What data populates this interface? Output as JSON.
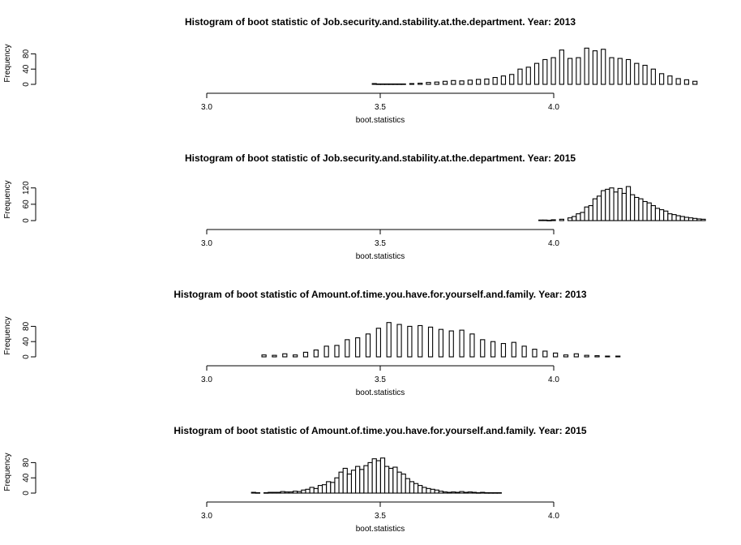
{
  "figure": {
    "background": "#ffffff",
    "bar_fill": "#ffffff",
    "bar_stroke": "#000000"
  },
  "chart_data": [
    {
      "type": "bar",
      "title": "Histogram of boot statistic of  Job.security.and.stability.at.the.department. Year: 2013",
      "xlabel": "boot.statistics",
      "ylabel": "Frequency",
      "xlim": [
        3.0,
        4.45
      ],
      "ylim": [
        0,
        100
      ],
      "xticks": [
        "3.0",
        "3.5",
        "4.0"
      ],
      "xtick_values": [
        3.0,
        3.5,
        4.0
      ],
      "yticks": [
        "0",
        "40",
        "80"
      ],
      "ytick_values": [
        0,
        40,
        80
      ],
      "bin_width": 0.012,
      "x": [
        3.483,
        3.495,
        3.507,
        3.519,
        3.531,
        3.543,
        3.555,
        3.567,
        3.591,
        3.615,
        3.639,
        3.663,
        3.687,
        3.711,
        3.735,
        3.759,
        3.783,
        3.807,
        3.831,
        3.855,
        3.879,
        3.903,
        3.927,
        3.951,
        3.975,
        3.999,
        4.023,
        4.047,
        4.071,
        4.095,
        4.119,
        4.143,
        4.167,
        4.191,
        4.215,
        4.239,
        4.263,
        4.287,
        4.311,
        4.335,
        4.359,
        4.383,
        4.407
      ],
      "values": [
        2,
        1,
        1,
        1,
        1,
        1,
        1,
        1,
        2,
        3,
        5,
        6,
        8,
        10,
        9,
        11,
        13,
        14,
        18,
        22,
        26,
        40,
        45,
        55,
        65,
        70,
        90,
        68,
        70,
        95,
        88,
        92,
        70,
        68,
        65,
        55,
        50,
        40,
        28,
        22,
        15,
        12,
        8
      ]
    },
    {
      "type": "bar",
      "title": "Histogram of boot statistic of  Job.security.and.stability.at.the.department. Year: 2015",
      "xlabel": "boot.statistics",
      "ylabel": "Frequency",
      "xlim": [
        3.0,
        4.45
      ],
      "ylim": [
        0,
        140
      ],
      "xticks": [
        "3.0",
        "3.5",
        "4.0"
      ],
      "xtick_values": [
        3.0,
        3.5,
        4.0
      ],
      "yticks": [
        "0",
        "60",
        "120"
      ],
      "ytick_values": [
        0,
        60,
        120
      ],
      "bin_width": 0.012,
      "x": [
        3.963,
        3.975,
        3.987,
        3.999,
        4.023,
        4.047,
        4.059,
        4.071,
        4.083,
        4.095,
        4.107,
        4.119,
        4.131,
        4.143,
        4.155,
        4.167,
        4.179,
        4.191,
        4.203,
        4.215,
        4.227,
        4.239,
        4.251,
        4.263,
        4.275,
        4.287,
        4.299,
        4.311,
        4.323,
        4.335,
        4.347,
        4.359,
        4.371,
        4.383,
        4.395,
        4.407,
        4.419,
        4.431
      ],
      "values": [
        2,
        2,
        1,
        3,
        5,
        10,
        15,
        25,
        30,
        50,
        55,
        80,
        90,
        110,
        115,
        120,
        105,
        118,
        100,
        125,
        95,
        85,
        80,
        70,
        65,
        55,
        45,
        40,
        35,
        25,
        22,
        18,
        15,
        12,
        10,
        8,
        6,
        5
      ]
    },
    {
      "type": "bar",
      "title": "Histogram of boot statistic of  Amount.of.time.you.have.for.yourself.and.family. Year: 2013",
      "xlabel": "boot.statistics",
      "ylabel": "Frequency",
      "xlim": [
        3.0,
        4.45
      ],
      "ylim": [
        0,
        100
      ],
      "xticks": [
        "3.0",
        "3.5",
        "4.0"
      ],
      "xtick_values": [
        3.0,
        3.5,
        4.0
      ],
      "yticks": [
        "0",
        "40",
        "80"
      ],
      "ytick_values": [
        0,
        40,
        80
      ],
      "bin_width": 0.012,
      "x": [
        3.165,
        3.195,
        3.225,
        3.255,
        3.285,
        3.315,
        3.345,
        3.375,
        3.405,
        3.435,
        3.465,
        3.495,
        3.525,
        3.555,
        3.585,
        3.615,
        3.645,
        3.675,
        3.705,
        3.735,
        3.765,
        3.795,
        3.825,
        3.855,
        3.885,
        3.915,
        3.945,
        3.975,
        4.005,
        4.035,
        4.065,
        4.095,
        4.125,
        4.155,
        4.185
      ],
      "values": [
        5,
        4,
        8,
        5,
        12,
        18,
        28,
        30,
        45,
        50,
        60,
        75,
        90,
        85,
        80,
        82,
        78,
        72,
        68,
        70,
        60,
        45,
        40,
        35,
        38,
        28,
        20,
        15,
        10,
        5,
        8,
        4,
        3,
        2,
        2
      ]
    },
    {
      "type": "bar",
      "title": "Histogram of boot statistic of  Amount.of.time.you.have.for.yourself.and.family. Year: 2015",
      "xlabel": "boot.statistics",
      "ylabel": "Frequency",
      "xlim": [
        3.0,
        4.45
      ],
      "ylim": [
        0,
        100
      ],
      "xticks": [
        "3.0",
        "3.5",
        "4.0"
      ],
      "xtick_values": [
        3.0,
        3.5,
        4.0
      ],
      "yticks": [
        "0",
        "40",
        "80"
      ],
      "ytick_values": [
        0,
        40,
        80
      ],
      "bin_width": 0.012,
      "x": [
        3.135,
        3.147,
        3.171,
        3.183,
        3.195,
        3.207,
        3.219,
        3.231,
        3.243,
        3.255,
        3.267,
        3.279,
        3.291,
        3.303,
        3.315,
        3.327,
        3.339,
        3.351,
        3.363,
        3.375,
        3.387,
        3.399,
        3.411,
        3.423,
        3.435,
        3.447,
        3.459,
        3.471,
        3.483,
        3.495,
        3.507,
        3.519,
        3.531,
        3.543,
        3.555,
        3.567,
        3.579,
        3.591,
        3.603,
        3.615,
        3.627,
        3.639,
        3.651,
        3.663,
        3.675,
        3.687,
        3.699,
        3.711,
        3.723,
        3.735,
        3.747,
        3.759,
        3.771,
        3.783,
        3.795,
        3.807,
        3.819,
        3.831,
        3.843
      ],
      "values": [
        2,
        1,
        1,
        2,
        2,
        2,
        4,
        3,
        3,
        5,
        4,
        8,
        10,
        15,
        12,
        20,
        22,
        30,
        28,
        40,
        55,
        65,
        50,
        60,
        70,
        62,
        72,
        80,
        90,
        85,
        92,
        70,
        65,
        68,
        55,
        50,
        38,
        30,
        25,
        20,
        15,
        12,
        10,
        8,
        5,
        3,
        2,
        3,
        2,
        4,
        2,
        3,
        2,
        1,
        2,
        1,
        1,
        1,
        1
      ]
    }
  ]
}
